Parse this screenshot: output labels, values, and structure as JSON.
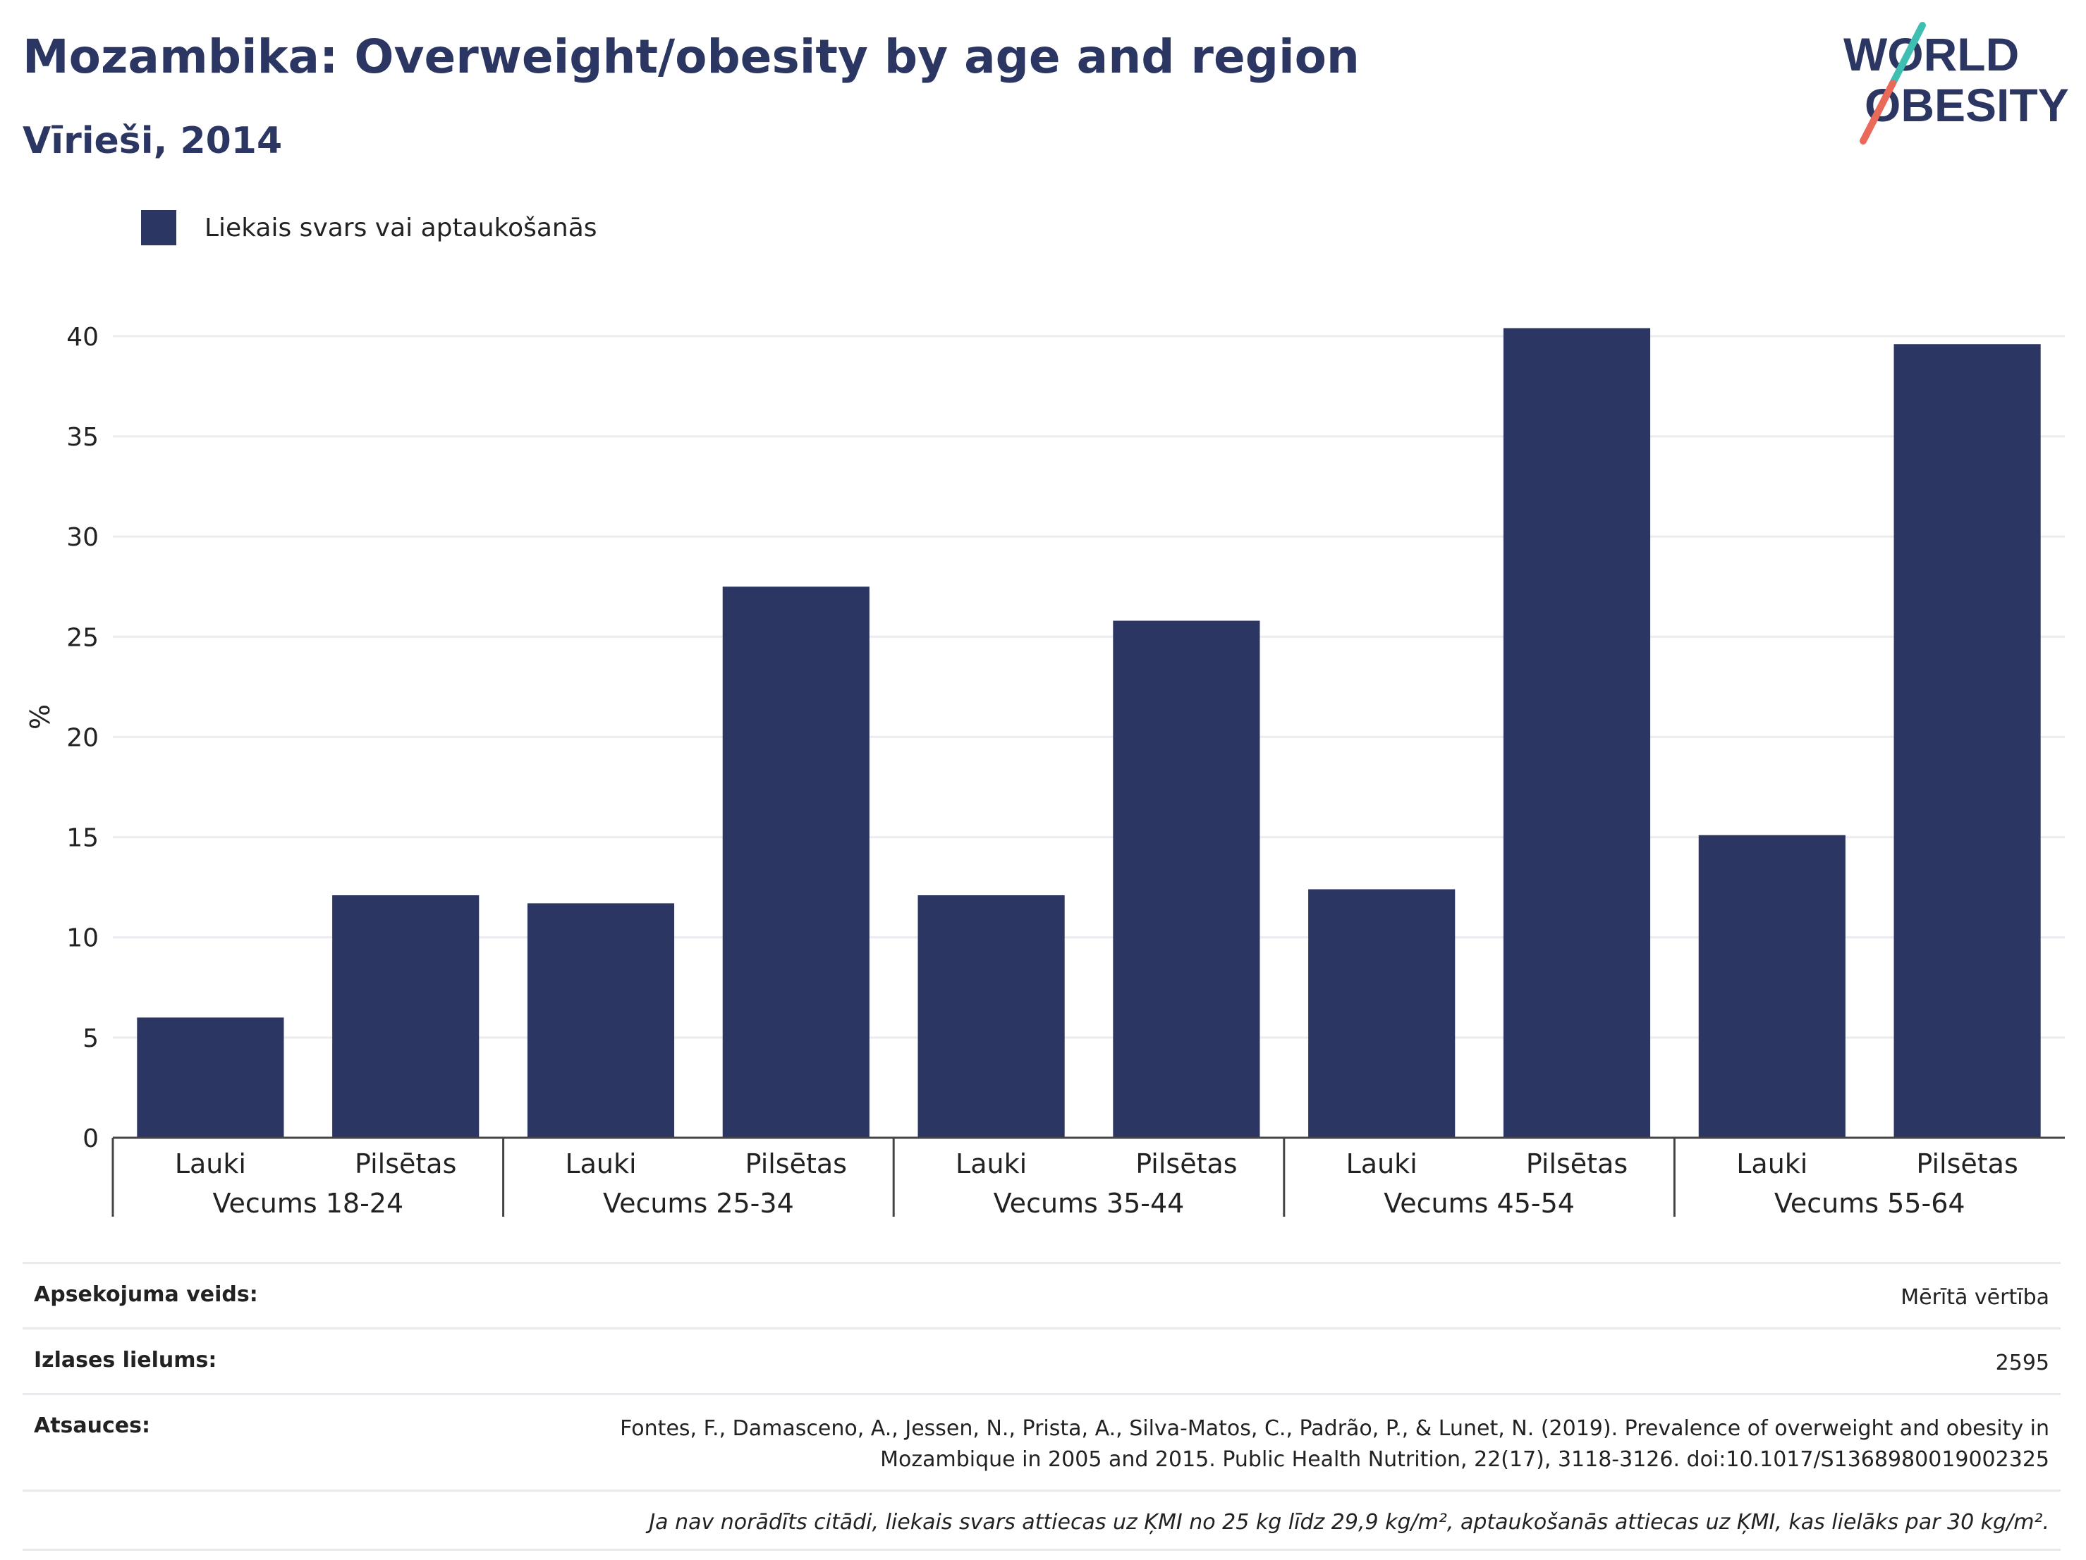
{
  "header": {
    "title": "Mozambika: Overweight/obesity by age and region",
    "subtitle": "Vīrieši, 2014"
  },
  "logo": {
    "line1": "WORLD",
    "line2": "OBESITY",
    "colors": {
      "navy": "#2b3663",
      "teal": "#3fbfb1",
      "coral": "#ea6a5a"
    }
  },
  "legend": {
    "label": "Liekais svars vai aptaukošanās",
    "color": "#2b3663"
  },
  "chart_data": {
    "type": "bar",
    "title": "Mozambika: Overweight/obesity by age and region",
    "subtitle": "Vīrieši, 2014",
    "ylabel": "%",
    "ylim": [
      0,
      42
    ],
    "yticks": [
      0,
      5,
      10,
      15,
      20,
      25,
      30,
      35,
      40
    ],
    "grid": true,
    "legend_position": "top-left",
    "bar_color": "#2b3663",
    "groups": [
      {
        "label": "Vecums 18-24",
        "categories": [
          "Lauki",
          "Pilsētas"
        ],
        "values": [
          6.0,
          12.1
        ]
      },
      {
        "label": "Vecums 25-34",
        "categories": [
          "Lauki",
          "Pilsētas"
        ],
        "values": [
          11.7,
          27.5
        ]
      },
      {
        "label": "Vecums 35-44",
        "categories": [
          "Lauki",
          "Pilsētas"
        ],
        "values": [
          12.1,
          25.8
        ]
      },
      {
        "label": "Vecums 45-54",
        "categories": [
          "Lauki",
          "Pilsētas"
        ],
        "values": [
          12.4,
          40.4
        ]
      },
      {
        "label": "Vecums 55-64",
        "categories": [
          "Lauki",
          "Pilsētas"
        ],
        "values": [
          15.1,
          39.6
        ]
      }
    ],
    "series": [
      {
        "name": "Liekais svars vai aptaukošanās"
      }
    ]
  },
  "info": {
    "survey_type_label": "Apsekojuma veids:",
    "survey_type_value": "Mērītā vērtība",
    "sample_size_label": "Izlases lielums:",
    "sample_size_value": "2595",
    "references_label": "Atsauces:",
    "references_line1": "Fontes, F., Damasceno, A., Jessen, N., Prista, A., Silva-Matos, C., Padrão, P., & Lunet, N. (2019). Prevalence of overweight and obesity in",
    "references_line2": "Mozambique in 2005 and 2015. Public Health Nutrition, 22(17), 3118-3126. doi:10.1017/S1368980019002325",
    "note": "Ja nav norādīts citādi, liekais svars attiecas uz ĶMI no 25 kg līdz 29,9 kg/m², aptaukošanās attiecas uz ĶMI, kas lielāks par 30 kg/m²."
  }
}
